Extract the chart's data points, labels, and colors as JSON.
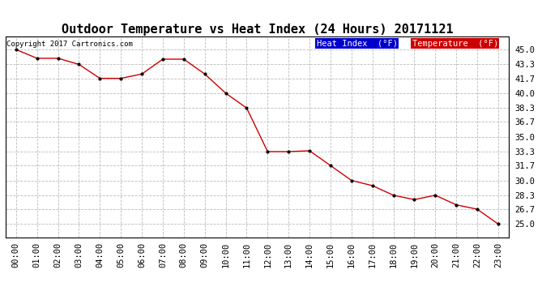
{
  "title": "Outdoor Temperature vs Heat Index (24 Hours) 20171121",
  "copyright_text": "Copyright 2017 Cartronics.com",
  "background_color": "#ffffff",
  "plot_bg_color": "#ffffff",
  "grid_color": "#bbbbbb",
  "line_color": "#cc0000",
  "marker_color": "#000000",
  "hours": [
    "00:00",
    "01:00",
    "02:00",
    "03:00",
    "04:00",
    "05:00",
    "06:00",
    "07:00",
    "08:00",
    "09:00",
    "10:00",
    "11:00",
    "12:00",
    "13:00",
    "14:00",
    "15:00",
    "16:00",
    "17:00",
    "18:00",
    "19:00",
    "20:00",
    "21:00",
    "22:00",
    "23:00"
  ],
  "temperature": [
    45.0,
    44.0,
    44.0,
    43.3,
    41.7,
    41.7,
    42.2,
    43.9,
    43.9,
    42.2,
    40.0,
    38.3,
    33.3,
    33.3,
    33.4,
    31.7,
    30.0,
    29.4,
    28.3,
    27.8,
    28.3,
    27.2,
    26.7,
    25.0
  ],
  "heat_index": [
    45.0,
    44.0,
    44.0,
    43.3,
    41.7,
    41.7,
    42.2,
    43.9,
    43.9,
    42.2,
    40.0,
    38.3,
    33.3,
    33.3,
    33.4,
    31.7,
    30.0,
    29.4,
    28.3,
    27.8,
    28.3,
    27.2,
    26.7,
    25.0
  ],
  "ylim": [
    23.5,
    46.5
  ],
  "yticks": [
    25.0,
    26.7,
    28.3,
    30.0,
    31.7,
    33.3,
    35.0,
    36.7,
    38.3,
    40.0,
    41.7,
    43.3,
    45.0
  ],
  "legend_heat_index_bg": "#0000cc",
  "legend_temp_bg": "#cc0000",
  "legend_heat_index_text": "Heat Index  (°F)",
  "legend_temp_text": "Temperature  (°F)",
  "title_fontsize": 11,
  "tick_fontsize": 7.5,
  "copyright_fontsize": 6.5,
  "legend_fontsize": 7.5
}
